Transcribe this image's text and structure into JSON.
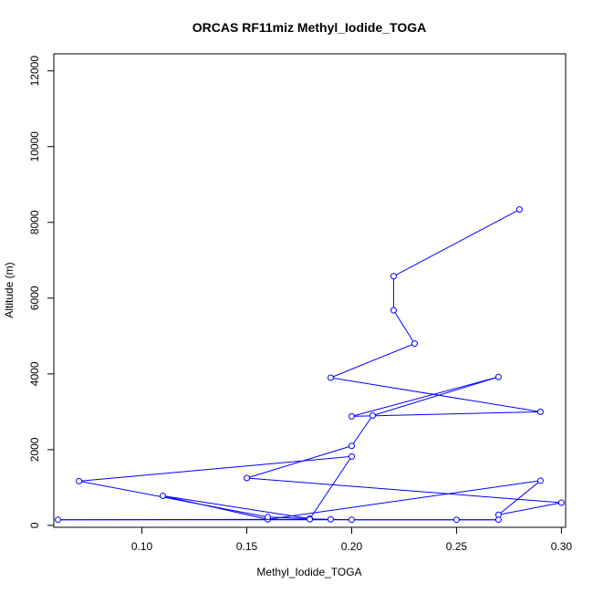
{
  "chart_data": {
    "type": "line",
    "title": "ORCAS RF11miz Methyl_Iodide_TOGA",
    "xlabel": "Methyl_Iodide_TOGA",
    "ylabel": "Altitude (m)",
    "xlim": [
      0.058,
      0.302
    ],
    "ylim": [
      -50,
      12450
    ],
    "xticks": [
      "0.10",
      "0.15",
      "0.20",
      "0.25",
      "0.30"
    ],
    "yticks": [
      "0",
      "2000",
      "4000",
      "6000",
      "8000",
      "10000",
      "12000"
    ],
    "grid": false,
    "series_color": "#0000ff",
    "series": [
      {
        "points": [
          [
            0.28,
            8340
          ],
          [
            0.22,
            6580
          ],
          [
            0.22,
            5680
          ],
          [
            0.23,
            4800
          ],
          [
            0.19,
            3900
          ],
          [
            0.29,
            3000
          ],
          [
            0.2,
            2880
          ],
          [
            0.27,
            3920
          ],
          [
            0.21,
            2900
          ],
          [
            0.2,
            2100
          ],
          [
            0.15,
            1250
          ],
          [
            0.3,
            600
          ],
          [
            0.27,
            280
          ],
          [
            0.29,
            1180
          ],
          [
            0.16,
            160
          ],
          [
            0.11,
            780
          ],
          [
            0.18,
            180
          ],
          [
            0.16,
            220
          ],
          [
            0.07,
            1170
          ],
          [
            0.2,
            1820
          ],
          [
            0.18,
            170
          ],
          [
            0.19,
            160
          ],
          [
            0.2,
            150
          ],
          [
            0.25,
            150
          ],
          [
            0.27,
            150
          ],
          [
            0.06,
            150
          ],
          [
            0.18,
            160
          ]
        ]
      }
    ]
  }
}
